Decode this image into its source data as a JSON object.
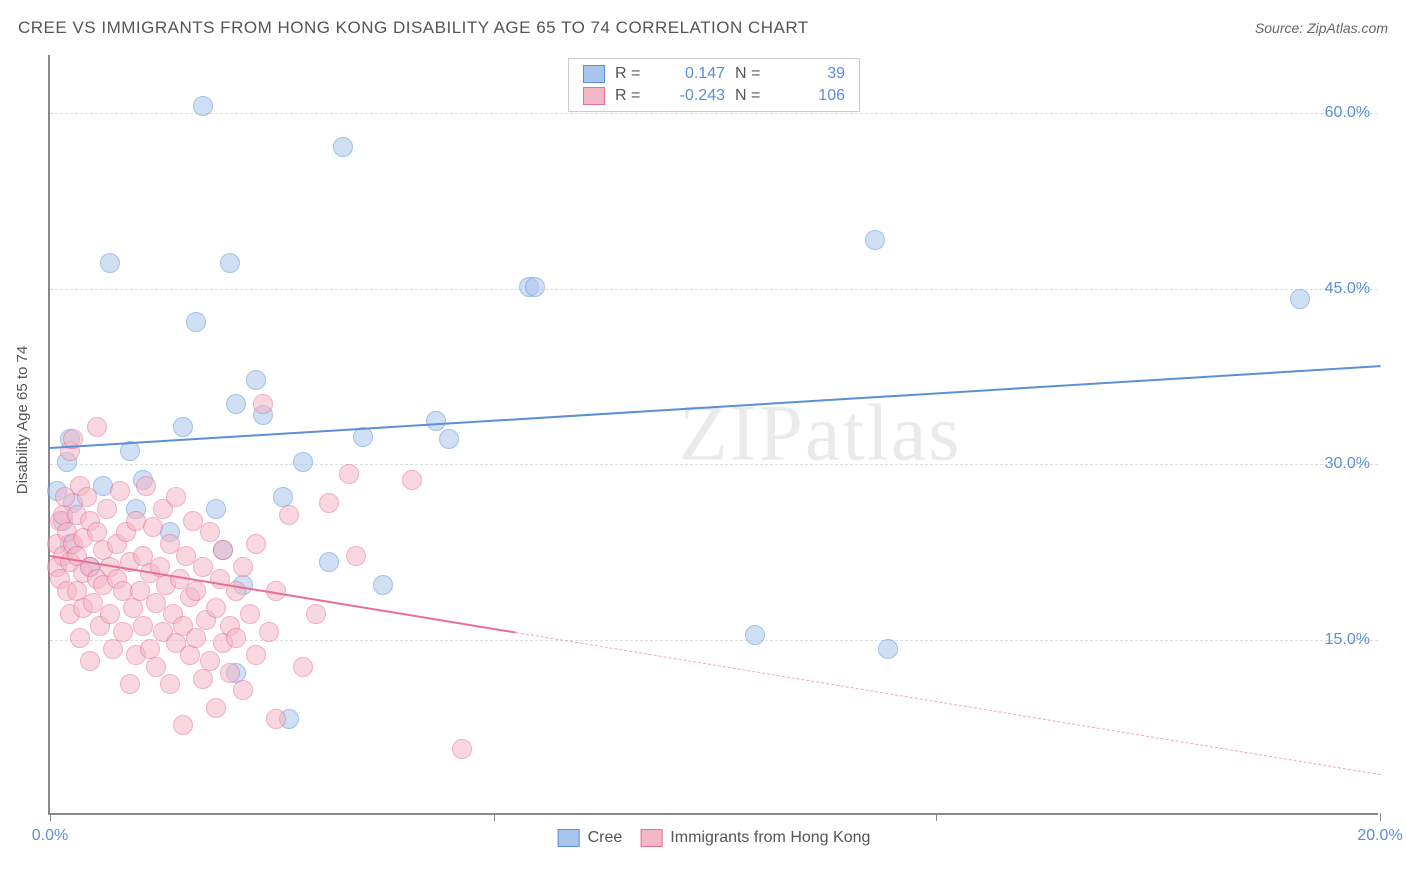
{
  "header": {
    "title": "CREE VS IMMIGRANTS FROM HONG KONG DISABILITY AGE 65 TO 74 CORRELATION CHART",
    "source_prefix": "Source: ",
    "source_name": "ZipAtlas.com"
  },
  "watermark": "ZIPatlas",
  "chart": {
    "type": "scatter",
    "yaxis_label": "Disability Age 65 to 74",
    "background_color": "#ffffff",
    "grid_color": "#dddddd",
    "axis_color": "#888888",
    "xlim": [
      0,
      20
    ],
    "ylim": [
      0,
      65
    ],
    "xtick_positions": [
      0,
      6.67,
      13.33,
      20
    ],
    "xtick_labels": [
      "0.0%",
      "",
      "",
      "20.0%"
    ],
    "ytick_positions": [
      15,
      30,
      45,
      60
    ],
    "ytick_labels": [
      "15.0%",
      "30.0%",
      "45.0%",
      "60.0%"
    ],
    "tick_fontsize": 16,
    "tick_color": "#5b8fd6",
    "label_fontsize": 15,
    "marker_radius": 10,
    "marker_opacity": 0.55,
    "series": [
      {
        "name": "Cree",
        "color_fill": "#a9c5ec",
        "color_stroke": "#5b8fd6",
        "R": "0.147",
        "N": "39",
        "trend": {
          "x1": 0,
          "y1": 31.5,
          "x2": 20,
          "y2": 38.5,
          "solid_to_x": 20,
          "width": 2.5
        },
        "points": [
          [
            0.1,
            27.5
          ],
          [
            0.2,
            25
          ],
          [
            0.25,
            30
          ],
          [
            0.3,
            32
          ],
          [
            0.3,
            23
          ],
          [
            0.35,
            26.5
          ],
          [
            0.6,
            21
          ],
          [
            0.8,
            28
          ],
          [
            0.9,
            47
          ],
          [
            1.2,
            31
          ],
          [
            1.3,
            26
          ],
          [
            1.4,
            28.5
          ],
          [
            1.8,
            24
          ],
          [
            2.0,
            33
          ],
          [
            2.2,
            42
          ],
          [
            2.3,
            60.5
          ],
          [
            2.5,
            26
          ],
          [
            2.6,
            22.5
          ],
          [
            2.7,
            47
          ],
          [
            2.8,
            35
          ],
          [
            2.8,
            12
          ],
          [
            2.9,
            19.5
          ],
          [
            3.1,
            37
          ],
          [
            3.2,
            34
          ],
          [
            3.5,
            27
          ],
          [
            3.6,
            8
          ],
          [
            3.8,
            30
          ],
          [
            4.2,
            21.5
          ],
          [
            4.4,
            57
          ],
          [
            4.7,
            32.2
          ],
          [
            5.0,
            19.5
          ],
          [
            5.8,
            33.5
          ],
          [
            6.0,
            32
          ],
          [
            7.2,
            45
          ],
          [
            7.3,
            45
          ],
          [
            10.6,
            15.2
          ],
          [
            12.4,
            49
          ],
          [
            12.6,
            14
          ],
          [
            18.8,
            44
          ]
        ]
      },
      {
        "name": "Immigrants from Hong Kong",
        "color_fill": "#f4b7c7",
        "color_stroke": "#e86e92",
        "R": "-0.243",
        "N": "106",
        "trend": {
          "x1": 0,
          "y1": 22.2,
          "x2": 20,
          "y2": 3.5,
          "solid_to_x": 7.0,
          "width": 2.5
        },
        "points": [
          [
            0.1,
            21
          ],
          [
            0.1,
            23
          ],
          [
            0.15,
            25
          ],
          [
            0.15,
            20
          ],
          [
            0.2,
            25.5
          ],
          [
            0.2,
            22
          ],
          [
            0.22,
            27
          ],
          [
            0.25,
            24
          ],
          [
            0.25,
            19
          ],
          [
            0.3,
            21.5
          ],
          [
            0.3,
            17
          ],
          [
            0.3,
            31
          ],
          [
            0.35,
            32
          ],
          [
            0.35,
            23
          ],
          [
            0.4,
            19
          ],
          [
            0.4,
            25.5
          ],
          [
            0.4,
            22
          ],
          [
            0.45,
            15
          ],
          [
            0.45,
            28
          ],
          [
            0.5,
            20.5
          ],
          [
            0.5,
            23.5
          ],
          [
            0.5,
            17.5
          ],
          [
            0.55,
            27
          ],
          [
            0.6,
            13
          ],
          [
            0.6,
            21
          ],
          [
            0.6,
            25
          ],
          [
            0.65,
            18
          ],
          [
            0.7,
            20
          ],
          [
            0.7,
            24
          ],
          [
            0.7,
            33
          ],
          [
            0.75,
            16
          ],
          [
            0.8,
            22.5
          ],
          [
            0.8,
            19.5
          ],
          [
            0.85,
            26
          ],
          [
            0.9,
            21
          ],
          [
            0.9,
            17
          ],
          [
            0.95,
            14
          ],
          [
            1.0,
            23
          ],
          [
            1.0,
            20
          ],
          [
            1.05,
            27.5
          ],
          [
            1.1,
            15.5
          ],
          [
            1.1,
            19
          ],
          [
            1.15,
            24
          ],
          [
            1.2,
            11
          ],
          [
            1.2,
            21.5
          ],
          [
            1.25,
            17.5
          ],
          [
            1.3,
            25
          ],
          [
            1.3,
            13.5
          ],
          [
            1.35,
            19
          ],
          [
            1.4,
            22
          ],
          [
            1.4,
            16
          ],
          [
            1.45,
            28
          ],
          [
            1.5,
            20.5
          ],
          [
            1.5,
            14
          ],
          [
            1.55,
            24.5
          ],
          [
            1.6,
            18
          ],
          [
            1.6,
            12.5
          ],
          [
            1.65,
            21
          ],
          [
            1.7,
            15.5
          ],
          [
            1.7,
            26
          ],
          [
            1.75,
            19.5
          ],
          [
            1.8,
            23
          ],
          [
            1.8,
            11
          ],
          [
            1.85,
            17
          ],
          [
            1.9,
            14.5
          ],
          [
            1.9,
            27
          ],
          [
            1.95,
            20
          ],
          [
            2.0,
            16
          ],
          [
            2.0,
            7.5
          ],
          [
            2.05,
            22
          ],
          [
            2.1,
            13.5
          ],
          [
            2.1,
            18.5
          ],
          [
            2.15,
            25
          ],
          [
            2.2,
            15
          ],
          [
            2.2,
            19
          ],
          [
            2.3,
            11.5
          ],
          [
            2.3,
            21
          ],
          [
            2.35,
            16.5
          ],
          [
            2.4,
            13
          ],
          [
            2.4,
            24
          ],
          [
            2.5,
            17.5
          ],
          [
            2.5,
            9
          ],
          [
            2.55,
            20
          ],
          [
            2.6,
            14.5
          ],
          [
            2.6,
            22.5
          ],
          [
            2.7,
            16
          ],
          [
            2.7,
            12
          ],
          [
            2.8,
            19
          ],
          [
            2.8,
            15
          ],
          [
            2.9,
            21
          ],
          [
            2.9,
            10.5
          ],
          [
            3.0,
            17
          ],
          [
            3.1,
            13.5
          ],
          [
            3.1,
            23
          ],
          [
            3.2,
            35
          ],
          [
            3.3,
            15.5
          ],
          [
            3.4,
            19
          ],
          [
            3.4,
            8
          ],
          [
            3.6,
            25.5
          ],
          [
            3.8,
            12.5
          ],
          [
            4.0,
            17
          ],
          [
            4.2,
            26.5
          ],
          [
            4.5,
            29
          ],
          [
            4.6,
            22
          ],
          [
            5.45,
            28.5
          ],
          [
            6.2,
            5.5
          ]
        ]
      }
    ]
  },
  "legend_bottom": {
    "items": [
      {
        "label": "Cree",
        "fill": "#a9c5ec",
        "stroke": "#5b8fd6"
      },
      {
        "label": "Immigrants from Hong Kong",
        "fill": "#f4b7c7",
        "stroke": "#e86e92"
      }
    ]
  }
}
